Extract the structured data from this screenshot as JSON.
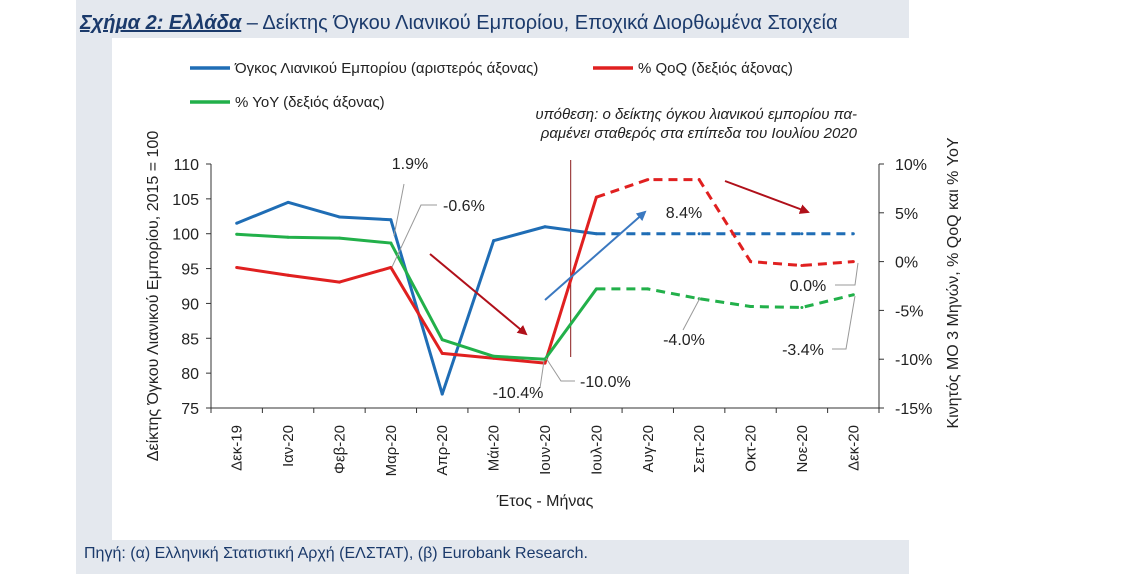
{
  "figure": {
    "label": "Σχήμα 2: Ελλάδα",
    "title": " – Δείκτης Όγκου Λιανικού Εμπορίου, Εποχικά Διορθωμένα Στοιχεία",
    "source": "Πηγή: (α) Ελληνική Στατιστική Αρχή (ΕΛΣΤΑΤ), (β) Eurobank Research."
  },
  "colors": {
    "volume": "#1f6db5",
    "qoq": "#e02020",
    "yoy": "#22b04a",
    "arrow_red": "#b0101a",
    "arrow_blue": "#3a78c0",
    "title": "#1b3a6b"
  },
  "chart_data": {
    "type": "line",
    "categories": [
      "Δεκ-19",
      "Ιαν-20",
      "Φεβ-20",
      "Μαρ-20",
      "Απρ-20",
      "Μάι-20",
      "Ιουν-20",
      "Ιουλ-20",
      "Αυγ-20",
      "Σεπ-20",
      "Οκτ-20",
      "Νοε-20",
      "Δεκ-20"
    ],
    "xlabel": "Έτος - Μήνας",
    "ylabel_left": "Δείκτης Όγκου Λιανικού Εμπορίου, 2015 = 100",
    "ylabel_right": "Κινητός ΜΟ 3 Μηνών, % QoQ και % YoY",
    "ylim_left": [
      75,
      110
    ],
    "ylim_right": [
      -15,
      10
    ],
    "yticks_left": [
      "110",
      "105",
      "100",
      "95",
      "90",
      "85",
      "80",
      "75"
    ],
    "yticks_right": [
      "10%",
      "5%",
      "0%",
      "-5%",
      "-10%",
      "-15%"
    ],
    "forecast_start_index": 7,
    "series": [
      {
        "name": "Όγκος Λιανικού Εμπορίου (αριστερός άξονας)",
        "axis": "left",
        "color": "#1f6db5",
        "values": [
          101.5,
          104.5,
          102.4,
          102.0,
          77.0,
          99.0,
          101.0,
          100.0,
          100.0,
          100.0,
          100.0,
          100.0,
          100.0
        ]
      },
      {
        "name": "% QoQ (δεξιός άξονας)",
        "axis": "right",
        "color": "#e02020",
        "values": [
          -0.6,
          -1.4,
          -2.1,
          -0.6,
          -9.4,
          -9.9,
          -10.4,
          6.6,
          8.4,
          8.4,
          0.0,
          -0.4,
          0.0
        ]
      },
      {
        "name": "% YoY (δεξιός άξονας)",
        "axis": "right",
        "color": "#22b04a",
        "values": [
          2.8,
          2.5,
          2.4,
          1.9,
          -8.0,
          -9.7,
          -10.0,
          -2.8,
          -2.8,
          -3.8,
          -4.6,
          -4.7,
          -3.4
        ]
      }
    ],
    "annotations": {
      "assumption": [
        "υπόθεση: ο δείκτης όγκου λιανικού εμπορίου πα-",
        "ραμένει σταθερός στα επίπεδα του Ιουλίου 2020"
      ],
      "data_labels": [
        "1.9%",
        "-0.6%",
        "8.4%",
        "-10.4%",
        "-10.0%",
        "-4.0%",
        "0.0%",
        "-3.4%"
      ]
    }
  }
}
